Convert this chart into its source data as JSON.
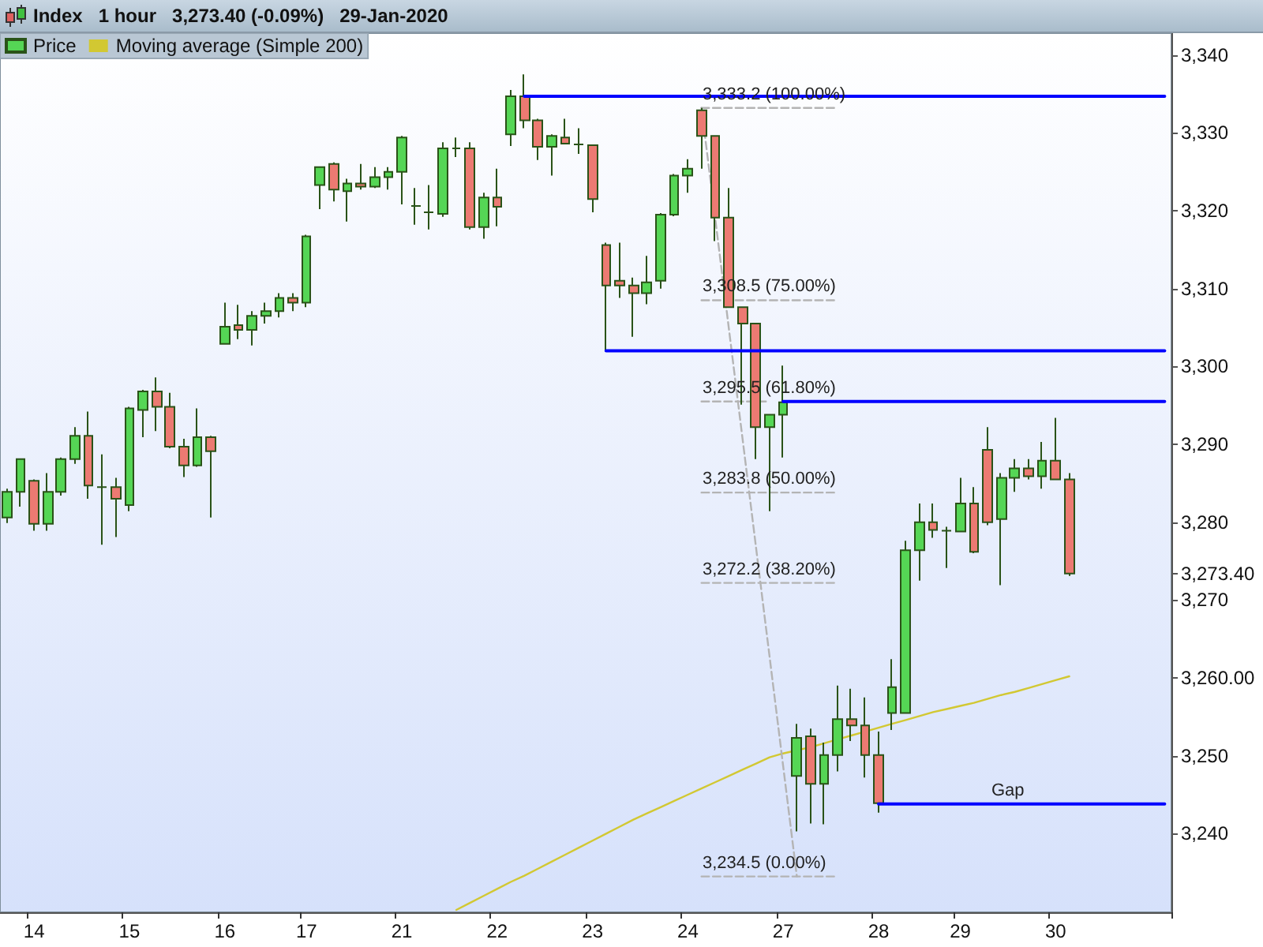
{
  "chart_data": {
    "type": "candlestick",
    "title": "Index   1 hour   3,273.40 (-0.09%)   29-Jan-2020",
    "categories": [
      null,
      null,
      "14",
      null,
      null,
      null,
      null,
      null,
      null,
      "15",
      null,
      null,
      null,
      null,
      null,
      null,
      "16",
      null,
      null,
      null,
      null,
      null,
      "17",
      null,
      null,
      null,
      null,
      null,
      null,
      "21",
      null,
      null,
      null,
      null,
      null,
      null,
      "22",
      null,
      null,
      null,
      null,
      null,
      null,
      "23",
      null,
      null,
      null,
      null,
      null,
      null,
      "24",
      null,
      null,
      null,
      null,
      null,
      null,
      "27",
      null,
      null,
      null,
      null,
      null,
      null,
      "28",
      null,
      null,
      null,
      null,
      null,
      "29",
      null,
      null,
      null,
      null,
      null,
      null,
      "30",
      null,
      null,
      null,
      null,
      null,
      null,
      null,
      null
    ],
    "series": [
      {
        "type": "candlestick",
        "name": "Price",
        "ohlc": [
          [
            3280.6,
            3284.3,
            3279.9,
            3283.9
          ],
          [
            3283.9,
            3288.1,
            3282.0,
            3288.1
          ],
          [
            3285.3,
            3285.5,
            3278.9,
            3279.8
          ],
          [
            3279.8,
            3286.3,
            3278.9,
            3283.9
          ],
          [
            3283.9,
            3288.3,
            3283.4,
            3288.1
          ],
          [
            3288.1,
            3292.2,
            3287.5,
            3291.1
          ],
          [
            3291.1,
            3294.2,
            3283.0,
            3284.7
          ],
          [
            3284.5,
            3288.7,
            3277.1,
            3284.5
          ],
          [
            3284.5,
            3285.7,
            3278.1,
            3283.0
          ],
          [
            3282.2,
            3294.8,
            3281.4,
            3294.6
          ],
          [
            3294.4,
            3297.0,
            3290.9,
            3296.8
          ],
          [
            3296.8,
            3298.6,
            3291.7,
            3294.8
          ],
          [
            3294.8,
            3296.6,
            3289.5,
            3289.7
          ],
          [
            3289.7,
            3290.7,
            3285.8,
            3287.3
          ],
          [
            3287.3,
            3294.6,
            3287.1,
            3290.9
          ],
          [
            3290.9,
            3291.1,
            3280.6,
            3289.1
          ],
          [
            3302.9,
            3308.2,
            3302.9,
            3305.1
          ],
          [
            3305.3,
            3307.9,
            3303.5,
            3304.7
          ],
          [
            3304.7,
            3307.1,
            3302.7,
            3306.5
          ],
          [
            3306.5,
            3308.2,
            3305.5,
            3307.1
          ],
          [
            3307.1,
            3309.4,
            3306.3,
            3308.8
          ],
          [
            3308.8,
            3309.4,
            3307.1,
            3308.2
          ],
          [
            3308.2,
            3316.9,
            3307.6,
            3316.7
          ],
          [
            3323.3,
            3325.6,
            3320.2,
            3325.6
          ],
          [
            3326.0,
            3326.2,
            3321.2,
            3322.7
          ],
          [
            3322.5,
            3324.1,
            3318.6,
            3323.5
          ],
          [
            3323.5,
            3326.0,
            3322.7,
            3323.1
          ],
          [
            3323.1,
            3325.6,
            3322.9,
            3324.3
          ],
          [
            3324.3,
            3325.6,
            3322.7,
            3325.0
          ],
          [
            3325.0,
            3329.6,
            3320.8,
            3329.4
          ],
          [
            3320.6,
            3322.9,
            3318.2,
            3320.6
          ],
          [
            3319.8,
            3323.3,
            3317.6,
            3319.8
          ],
          [
            3319.6,
            3328.8,
            3319.2,
            3328.0
          ],
          [
            3328.0,
            3329.4,
            3326.9,
            3328.0
          ],
          [
            3328.0,
            3328.8,
            3317.6,
            3317.9
          ],
          [
            3317.9,
            3322.3,
            3316.4,
            3321.7
          ],
          [
            3321.7,
            3325.4,
            3318.0,
            3320.5
          ],
          [
            3329.8,
            3335.5,
            3328.3,
            3334.7
          ],
          [
            3334.7,
            3337.5,
            3330.6,
            3331.6
          ],
          [
            3331.6,
            3331.8,
            3326.5,
            3328.2
          ],
          [
            3328.2,
            3329.8,
            3324.5,
            3329.6
          ],
          [
            3329.4,
            3331.8,
            3328.6,
            3328.6
          ],
          [
            3328.5,
            3330.6,
            3327.3,
            3328.5
          ],
          [
            3328.4,
            3328.4,
            3319.8,
            3321.5
          ],
          [
            3315.6,
            3315.9,
            3301.9,
            3310.4
          ],
          [
            3311.0,
            3315.9,
            3308.8,
            3310.4
          ],
          [
            3310.4,
            3311.4,
            3303.8,
            3309.4
          ],
          [
            3309.4,
            3314.2,
            3308.0,
            3310.8
          ],
          [
            3311.0,
            3319.7,
            3310.0,
            3319.5
          ],
          [
            3319.5,
            3324.7,
            3319.3,
            3324.5
          ],
          [
            3324.5,
            3326.6,
            3322.3,
            3325.4
          ],
          [
            3332.9,
            3333.2,
            3325.4,
            3329.6
          ],
          [
            3329.6,
            3329.6,
            3316.1,
            3319.1
          ],
          [
            3319.1,
            3322.9,
            3307.6,
            3307.6
          ],
          [
            3307.6,
            3307.6,
            3295.1,
            3305.5
          ],
          [
            3305.5,
            3305.5,
            3288.1,
            3292.2
          ],
          [
            3292.2,
            3293.8,
            3281.4,
            3293.8
          ],
          [
            3293.8,
            3300.1,
            3288.3,
            3295.4
          ],
          [
            3247.4,
            3254.1,
            3240.3,
            3252.3
          ],
          [
            3252.5,
            3253.5,
            3241.3,
            3246.4
          ],
          [
            3246.4,
            3251.7,
            3241.2,
            3250.1
          ],
          [
            3250.1,
            3259.0,
            3248.0,
            3254.7
          ],
          [
            3254.7,
            3258.6,
            3251.9,
            3253.9
          ],
          [
            3253.9,
            3257.5,
            3247.2,
            3250.1
          ],
          [
            3250.1,
            3253.1,
            3242.7,
            3243.9
          ],
          [
            3255.5,
            3262.4,
            3253.3,
            3258.8
          ],
          [
            3255.5,
            3277.6,
            3255.5,
            3276.4
          ],
          [
            3276.4,
            3282.4,
            3272.5,
            3280.0
          ],
          [
            3280.0,
            3282.4,
            3278.0,
            3279.0
          ],
          [
            3278.9,
            3279.4,
            3274.1,
            3278.9
          ],
          [
            3278.8,
            3285.7,
            3278.8,
            3282.4
          ],
          [
            3282.4,
            3284.5,
            3276.0,
            3276.2
          ],
          [
            3289.3,
            3292.2,
            3279.6,
            3280.0
          ],
          [
            3280.4,
            3286.3,
            3271.9,
            3285.7
          ],
          [
            3285.7,
            3288.1,
            3283.9,
            3286.9
          ],
          [
            3286.9,
            3288.1,
            3285.5,
            3285.9
          ],
          [
            3285.9,
            3290.3,
            3284.3,
            3287.9
          ],
          [
            3287.9,
            3293.4,
            3285.5,
            3285.5
          ],
          [
            3285.5,
            3286.3,
            3273.1,
            3273.4
          ],
          null,
          null,
          null,
          null,
          null,
          null,
          null
        ]
      },
      {
        "type": "line",
        "name": "Moving average (Simple 200)",
        "color": "#d2c832",
        "values": [
          null,
          null,
          null,
          null,
          null,
          null,
          null,
          null,
          null,
          null,
          null,
          null,
          null,
          null,
          null,
          null,
          null,
          null,
          null,
          null,
          null,
          null,
          null,
          null,
          null,
          null,
          null,
          null,
          null,
          null,
          null,
          null,
          null,
          3230.2,
          3231.1,
          3232.0,
          3232.9,
          3233.8,
          3234.6,
          3235.5,
          3236.4,
          3237.3,
          3238.2,
          3239.1,
          3240.0,
          3240.9,
          3241.8,
          3242.6,
          3243.4,
          3244.2,
          3245.0,
          3245.8,
          3246.6,
          3247.4,
          3248.2,
          3249.0,
          3249.8,
          3250.3,
          3250.7,
          3251.1,
          3251.6,
          3252.1,
          3252.6,
          3253.1,
          3253.6,
          3254.1,
          3254.6,
          3255.1,
          3255.6,
          3256.0,
          3256.4,
          3256.8,
          3257.3,
          3257.8,
          3258.2,
          3258.7,
          3259.2,
          3259.7,
          3260.2,
          null,
          null,
          null,
          null,
          null,
          null,
          null
        ]
      },
      {
        "type": "line",
        "color": "#0000ff",
        "values": [
          null,
          null,
          null,
          null,
          null,
          null,
          null,
          null,
          null,
          null,
          null,
          null,
          null,
          null,
          null,
          null,
          null,
          null,
          null,
          null,
          null,
          null,
          null,
          null,
          null,
          null,
          null,
          null,
          null,
          null,
          null,
          null,
          null,
          null,
          null,
          null,
          null,
          null,
          3334.7,
          3334.7,
          3334.7,
          3334.7,
          3334.7,
          3334.7,
          3334.7,
          3334.7,
          3334.7,
          3334.7,
          3334.7,
          3334.7,
          3334.7,
          3334.7,
          3334.7,
          3334.7,
          3334.7,
          3334.7,
          3334.7,
          3334.7,
          3334.7,
          3334.7,
          3334.7,
          3334.7,
          3334.7,
          3334.7,
          3334.7,
          3334.7,
          3334.7,
          3334.7,
          3334.7,
          3334.7,
          3334.7,
          3334.7,
          3334.7,
          3334.7,
          3334.7,
          3334.7,
          3334.7,
          3334.7,
          3334.7,
          3334.7,
          3334.7,
          3334.7,
          3334.7,
          3334.7,
          3334.7,
          3334.7
        ]
      },
      {
        "type": "line",
        "color": "#0000ff",
        "values": [
          null,
          null,
          null,
          null,
          null,
          null,
          null,
          null,
          null,
          null,
          null,
          null,
          null,
          null,
          null,
          null,
          null,
          null,
          null,
          null,
          null,
          null,
          null,
          null,
          null,
          null,
          null,
          null,
          null,
          null,
          null,
          null,
          null,
          null,
          null,
          null,
          null,
          null,
          null,
          null,
          null,
          null,
          null,
          null,
          3302.0,
          3302.0,
          3302.0,
          3302.0,
          3302.0,
          3302.0,
          3302.0,
          3302.0,
          3302.0,
          3302.0,
          3302.0,
          3302.0,
          3302.0,
          3302.0,
          3302.0,
          3302.0,
          3302.0,
          3302.0,
          3302.0,
          3302.0,
          3302.0,
          3302.0,
          3302.0,
          3302.0,
          3302.0,
          3302.0,
          3302.0,
          3302.0,
          3302.0,
          3302.0,
          3302.0,
          3302.0,
          3302.0,
          3302.0,
          3302.0,
          3302.0,
          3302.0,
          3302.0,
          3302.0,
          3302.0,
          3302.0,
          3302.0
        ]
      },
      {
        "type": "line",
        "color": "#0000ff",
        "values": [
          null,
          null,
          null,
          null,
          null,
          null,
          null,
          null,
          null,
          null,
          null,
          null,
          null,
          null,
          null,
          null,
          null,
          null,
          null,
          null,
          null,
          null,
          null,
          null,
          null,
          null,
          null,
          null,
          null,
          null,
          null,
          null,
          null,
          null,
          null,
          null,
          null,
          null,
          null,
          null,
          null,
          null,
          null,
          null,
          null,
          null,
          null,
          null,
          null,
          null,
          null,
          null,
          null,
          null,
          null,
          null,
          null,
          3295.5,
          3295.5,
          3295.5,
          3295.5,
          3295.5,
          3295.5,
          3295.5,
          3295.5,
          3295.5,
          3295.5,
          3295.5,
          3295.5,
          3295.5,
          3295.5,
          3295.5,
          3295.5,
          3295.5,
          3295.5,
          3295.5,
          3295.5,
          3295.5,
          3295.5,
          3295.5,
          3295.5,
          3295.5,
          3295.5,
          3295.5,
          3295.5,
          3295.5
        ]
      },
      {
        "type": "line",
        "color": "#0000ff",
        "values": [
          null,
          null,
          null,
          null,
          null,
          null,
          null,
          null,
          null,
          null,
          null,
          null,
          null,
          null,
          null,
          null,
          null,
          null,
          null,
          null,
          null,
          null,
          null,
          null,
          null,
          null,
          null,
          null,
          null,
          null,
          null,
          null,
          null,
          null,
          null,
          null,
          null,
          null,
          null,
          null,
          null,
          null,
          null,
          null,
          null,
          null,
          null,
          null,
          null,
          null,
          null,
          null,
          null,
          null,
          null,
          null,
          null,
          null,
          null,
          null,
          null,
          null,
          null,
          null,
          3243.8,
          3243.8,
          3243.8,
          3243.8,
          3243.8,
          3243.8,
          3243.8,
          3243.8,
          3243.8,
          3243.8,
          3243.8,
          3243.8,
          3243.8,
          3243.8,
          3243.8,
          3243.8,
          3243.8,
          3243.8,
          3243.8,
          3243.8,
          3243.8,
          3243.8
        ]
      },
      {
        "type": "line",
        "color": "#b4b4b4",
        "line_style": "dashed",
        "values": [
          null,
          null,
          null,
          null,
          null,
          null,
          null,
          null,
          null,
          null,
          null,
          null,
          null,
          null,
          null,
          null,
          null,
          null,
          null,
          null,
          null,
          null,
          null,
          null,
          null,
          null,
          null,
          null,
          null,
          null,
          null,
          null,
          null,
          null,
          null,
          null,
          null,
          null,
          null,
          null,
          null,
          null,
          null,
          null,
          null,
          null,
          null,
          null,
          null,
          null,
          null,
          3333.2,
          3319.1,
          3305.0,
          3290.9,
          3276.8,
          3262.7,
          3248.6,
          3234.5,
          null,
          null,
          null,
          null,
          null,
          null,
          null,
          null,
          null,
          null,
          null,
          null,
          null,
          null,
          null,
          null,
          null,
          null,
          null,
          null,
          null,
          null,
          null,
          null,
          null,
          null,
          null
        ]
      },
      {
        "type": "line",
        "color": "#b4b4b4",
        "line_style": "dashed",
        "values": [
          null,
          null,
          null,
          null,
          null,
          null,
          null,
          null,
          null,
          null,
          null,
          null,
          null,
          null,
          null,
          null,
          null,
          null,
          null,
          null,
          null,
          null,
          null,
          null,
          null,
          null,
          null,
          null,
          null,
          null,
          null,
          null,
          null,
          null,
          null,
          null,
          null,
          null,
          null,
          null,
          null,
          null,
          null,
          null,
          null,
          null,
          null,
          null,
          null,
          null,
          null,
          3333.2,
          3333.2,
          3333.2,
          3333.2,
          3333.2,
          3333.2,
          3333.2,
          3333.2,
          3333.2,
          3333.2,
          3333.2,
          null,
          null,
          null,
          null,
          null,
          null,
          null,
          null,
          null,
          null,
          null,
          null,
          null,
          null,
          null,
          null,
          null,
          null,
          null,
          null,
          null,
          null,
          null,
          null
        ]
      },
      {
        "type": "line",
        "color": "#b4b4b4",
        "line_style": "dashed",
        "values": [
          null,
          null,
          null,
          null,
          null,
          null,
          null,
          null,
          null,
          null,
          null,
          null,
          null,
          null,
          null,
          null,
          null,
          null,
          null,
          null,
          null,
          null,
          null,
          null,
          null,
          null,
          null,
          null,
          null,
          null,
          null,
          null,
          null,
          null,
          null,
          null,
          null,
          null,
          null,
          null,
          null,
          null,
          null,
          null,
          null,
          null,
          null,
          null,
          null,
          null,
          null,
          3308.5,
          3308.5,
          3308.5,
          3308.5,
          3308.5,
          3308.5,
          3308.5,
          3308.5,
          3308.5,
          3308.5,
          3308.5,
          null,
          null,
          null,
          null,
          null,
          null,
          null,
          null,
          null,
          null,
          null,
          null,
          null,
          null,
          null,
          null,
          null,
          null,
          null,
          null,
          null,
          null,
          null,
          null
        ]
      },
      {
        "type": "line",
        "color": "#b4b4b4",
        "line_style": "dashed",
        "values": [
          null,
          null,
          null,
          null,
          null,
          null,
          null,
          null,
          null,
          null,
          null,
          null,
          null,
          null,
          null,
          null,
          null,
          null,
          null,
          null,
          null,
          null,
          null,
          null,
          null,
          null,
          null,
          null,
          null,
          null,
          null,
          null,
          null,
          null,
          null,
          null,
          null,
          null,
          null,
          null,
          null,
          null,
          null,
          null,
          null,
          null,
          null,
          null,
          null,
          null,
          null,
          3295.5,
          3295.5,
          3295.5,
          3295.5,
          3295.5,
          3295.5,
          null,
          null,
          null,
          null,
          null,
          null,
          null,
          null,
          null,
          null,
          null,
          null,
          null,
          null,
          null,
          null,
          null,
          null,
          null,
          null,
          null,
          null,
          null,
          null,
          null,
          null,
          null,
          null,
          null
        ]
      },
      {
        "type": "line",
        "color": "#b4b4b4",
        "line_style": "dashed",
        "values": [
          null,
          null,
          null,
          null,
          null,
          null,
          null,
          null,
          null,
          null,
          null,
          null,
          null,
          null,
          null,
          null,
          null,
          null,
          null,
          null,
          null,
          null,
          null,
          null,
          null,
          null,
          null,
          null,
          null,
          null,
          null,
          null,
          null,
          null,
          null,
          null,
          null,
          null,
          null,
          null,
          null,
          null,
          null,
          null,
          null,
          null,
          null,
          null,
          null,
          null,
          null,
          3283.8,
          3283.8,
          3283.8,
          3283.8,
          3283.8,
          3283.8,
          3283.8,
          3283.8,
          3283.8,
          3283.8,
          3283.8,
          null,
          null,
          null,
          null,
          null,
          null,
          null,
          null,
          null,
          null,
          null,
          null,
          null,
          null,
          null,
          null,
          null,
          null,
          null,
          null,
          null,
          null,
          null,
          null
        ]
      },
      {
        "type": "line",
        "color": "#b4b4b4",
        "line_style": "dashed",
        "values": [
          null,
          null,
          null,
          null,
          null,
          null,
          null,
          null,
          null,
          null,
          null,
          null,
          null,
          null,
          null,
          null,
          null,
          null,
          null,
          null,
          null,
          null,
          null,
          null,
          null,
          null,
          null,
          null,
          null,
          null,
          null,
          null,
          null,
          null,
          null,
          null,
          null,
          null,
          null,
          null,
          null,
          null,
          null,
          null,
          null,
          null,
          null,
          null,
          null,
          null,
          null,
          3272.2,
          3272.2,
          3272.2,
          3272.2,
          3272.2,
          3272.2,
          3272.2,
          3272.2,
          3272.2,
          3272.2,
          3272.2,
          null,
          null,
          null,
          null,
          null,
          null,
          null,
          null,
          null,
          null,
          null,
          null,
          null,
          null,
          null,
          null,
          null,
          null,
          null,
          null,
          null,
          null,
          null,
          null
        ]
      },
      {
        "type": "line",
        "color": "#b4b4b4",
        "line_style": "dashed",
        "values": [
          null,
          null,
          null,
          null,
          null,
          null,
          null,
          null,
          null,
          null,
          null,
          null,
          null,
          null,
          null,
          null,
          null,
          null,
          null,
          null,
          null,
          null,
          null,
          null,
          null,
          null,
          null,
          null,
          null,
          null,
          null,
          null,
          null,
          null,
          null,
          null,
          null,
          null,
          null,
          null,
          null,
          null,
          null,
          null,
          null,
          null,
          null,
          null,
          null,
          null,
          null,
          3234.5,
          3234.5,
          3234.5,
          3234.5,
          3234.5,
          3234.5,
          3234.5,
          3234.5,
          3234.5,
          3234.5,
          3234.5,
          null,
          null,
          null,
          null,
          null,
          null,
          null,
          null,
          null,
          null,
          null,
          null,
          null,
          null,
          null,
          null,
          null,
          null,
          null,
          null,
          null,
          null,
          null,
          null
        ]
      }
    ],
    "ylim": [
      3229.9,
      3342.8
    ],
    "yticks": [
      {
        "value": 3240,
        "label": "3,240"
      },
      {
        "value": 3250,
        "label": "3,250"
      },
      {
        "value": 3260,
        "label": "3,260.00"
      },
      {
        "value": 3270,
        "label": "3,270"
      },
      {
        "value": 3273.4,
        "label": "3,273.40"
      },
      {
        "value": 3280,
        "label": "3,280"
      },
      {
        "value": 3290,
        "label": "3,290"
      },
      {
        "value": 3300,
        "label": "3,300"
      },
      {
        "value": 3310,
        "label": "3,310"
      },
      {
        "value": 3320,
        "label": "3,320"
      },
      {
        "value": 3330,
        "label": "3,330"
      },
      {
        "value": 3340,
        "label": "3,340"
      }
    ],
    "annotations": [
      {
        "text": "3,333.2 (100.00%)",
        "y": 3333.2
      },
      {
        "text": "3,308.5 (75.00%)",
        "y": 3308.5
      },
      {
        "text": "3,295.5 (61.80%)",
        "y": 3295.5
      },
      {
        "text": "3,283.8 (50.00%)",
        "y": 3283.8
      },
      {
        "text": "3,272.2 (38.20%)",
        "y": 3272.2
      },
      {
        "text": "3,234.5 (0.00%)",
        "y": 3234.5
      },
      {
        "text": "Gap",
        "y": 3243.8
      }
    ],
    "legend": "top left",
    "grid": false,
    "marker": "none"
  }
}
